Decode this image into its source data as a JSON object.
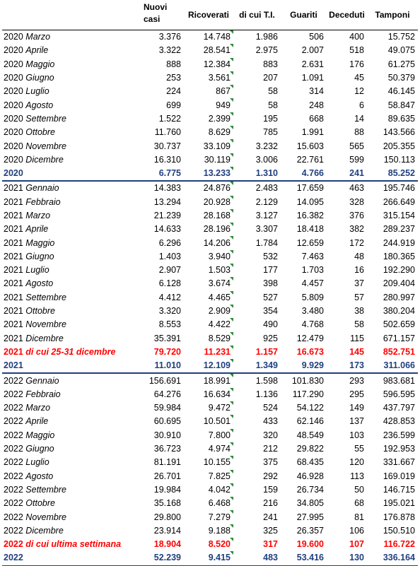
{
  "headers": [
    "",
    "Nuovi casi",
    "Ricoverati",
    "di cui T.I.",
    "Guariti",
    "Deceduti",
    "Tamponi"
  ],
  "sections": [
    {
      "year": "2020",
      "rows": [
        {
          "month": "Marzo",
          "values": [
            "3.376",
            "14.748",
            "1.986",
            "506",
            "400",
            "15.752"
          ]
        },
        {
          "month": "Aprile",
          "values": [
            "3.322",
            "28.541",
            "2.975",
            "2.007",
            "518",
            "49.075"
          ]
        },
        {
          "month": "Maggio",
          "values": [
            "888",
            "12.384",
            "883",
            "2.631",
            "176",
            "61.275"
          ]
        },
        {
          "month": "Giugno",
          "values": [
            "253",
            "3.561",
            "207",
            "1.091",
            "45",
            "50.379"
          ]
        },
        {
          "month": "Luglio",
          "values": [
            "224",
            "867",
            "58",
            "314",
            "12",
            "46.145"
          ]
        },
        {
          "month": "Agosto",
          "values": [
            "699",
            "949",
            "58",
            "248",
            "6",
            "58.847"
          ]
        },
        {
          "month": "Settembre",
          "values": [
            "1.522",
            "2.399",
            "195",
            "668",
            "14",
            "89.635"
          ]
        },
        {
          "month": "Ottobre",
          "values": [
            "11.760",
            "8.629",
            "785",
            "1.991",
            "88",
            "143.566"
          ]
        },
        {
          "month": "Novembre",
          "values": [
            "30.737",
            "33.109",
            "3.232",
            "15.603",
            "565",
            "205.355"
          ]
        },
        {
          "month": "Dicembre",
          "values": [
            "16.310",
            "30.119",
            "3.006",
            "22.761",
            "599",
            "150.113"
          ]
        }
      ],
      "week": null,
      "total": {
        "label": "2020",
        "values": [
          "6.775",
          "13.233",
          "1.310",
          "4.766",
          "241",
          "85.252"
        ]
      }
    },
    {
      "year": "2021",
      "rows": [
        {
          "month": "Gennaio",
          "values": [
            "14.383",
            "24.876",
            "2.483",
            "17.659",
            "463",
            "195.746"
          ]
        },
        {
          "month": "Febbraio",
          "values": [
            "13.294",
            "20.928",
            "2.129",
            "14.095",
            "328",
            "266.649"
          ]
        },
        {
          "month": "Marzo",
          "values": [
            "21.239",
            "28.168",
            "3.127",
            "16.382",
            "376",
            "315.154"
          ]
        },
        {
          "month": "Aprile",
          "values": [
            "14.633",
            "28.196",
            "3.307",
            "18.418",
            "382",
            "289.237"
          ]
        },
        {
          "month": "Maggio",
          "values": [
            "6.296",
            "14.206",
            "1.784",
            "12.659",
            "172",
            "244.919"
          ]
        },
        {
          "month": "Giugno",
          "values": [
            "1.403",
            "3.940",
            "532",
            "7.463",
            "48",
            "180.365"
          ]
        },
        {
          "month": "Luglio",
          "values": [
            "2.907",
            "1.503",
            "177",
            "1.703",
            "16",
            "192.290"
          ]
        },
        {
          "month": "Agosto",
          "values": [
            "6.128",
            "3.674",
            "398",
            "4.457",
            "37",
            "209.404"
          ]
        },
        {
          "month": "Settembre",
          "values": [
            "4.412",
            "4.465",
            "527",
            "5.809",
            "57",
            "280.997"
          ]
        },
        {
          "month": "Ottobre",
          "values": [
            "3.320",
            "2.909",
            "354",
            "3.480",
            "38",
            "380.204"
          ]
        },
        {
          "month": "Novembre",
          "values": [
            "8.553",
            "4.422",
            "490",
            "4.768",
            "58",
            "502.659"
          ]
        },
        {
          "month": "Dicembre",
          "values": [
            "35.391",
            "8.529",
            "925",
            "12.479",
            "115",
            "671.157"
          ]
        }
      ],
      "week": {
        "year": "2021",
        "label": "di cui 25-31 dicembre",
        "values": [
          "79.720",
          "11.231",
          "1.157",
          "16.673",
          "145",
          "852.751"
        ]
      },
      "total": {
        "label": "2021",
        "values": [
          "11.010",
          "12.109",
          "1.349",
          "9.929",
          "173",
          "311.066"
        ]
      }
    },
    {
      "year": "2022",
      "rows": [
        {
          "month": "Gennaio",
          "values": [
            "156.691",
            "18.991",
            "1.598",
            "101.830",
            "293",
            "983.681"
          ]
        },
        {
          "month": "Febbraio",
          "values": [
            "64.276",
            "16.634",
            "1.136",
            "117.290",
            "295",
            "596.595"
          ]
        },
        {
          "month": "Marzo",
          "values": [
            "59.984",
            "9.472",
            "524",
            "54.122",
            "149",
            "437.797"
          ]
        },
        {
          "month": "Aprile",
          "values": [
            "60.695",
            "10.501",
            "433",
            "62.146",
            "137",
            "428.853"
          ]
        },
        {
          "month": "Maggio",
          "values": [
            "30.910",
            "7.800",
            "320",
            "48.549",
            "103",
            "236.599"
          ]
        },
        {
          "month": "Giugno",
          "values": [
            "36.723",
            "4.974",
            "212",
            "29.822",
            "55",
            "192.953"
          ]
        },
        {
          "month": "Luglio",
          "values": [
            "81.191",
            "10.155",
            "375",
            "68.435",
            "120",
            "331.667"
          ]
        },
        {
          "month": "Agosto",
          "values": [
            "26.701",
            "7.825",
            "292",
            "46.928",
            "113",
            "169.019"
          ]
        },
        {
          "month": "Settembre",
          "values": [
            "19.984",
            "4.042",
            "159",
            "26.734",
            "50",
            "146.715"
          ]
        },
        {
          "month": "Ottobre",
          "values": [
            "35.168",
            "6.468",
            "216",
            "34.805",
            "68",
            "195.021"
          ]
        },
        {
          "month": "Novembre",
          "values": [
            "29.800",
            "7.279",
            "241",
            "27.995",
            "81",
            "176.878"
          ]
        },
        {
          "month": "Dicembre",
          "values": [
            "23.914",
            "9.188",
            "325",
            "26.357",
            "106",
            "150.510"
          ]
        }
      ],
      "week": {
        "year": "2022",
        "label": "di cui ultima settimana",
        "values": [
          "18.904",
          "8.520",
          "317",
          "19.600",
          "107",
          "116.722"
        ]
      },
      "total": {
        "label": "2022",
        "values": [
          "52.239",
          "9.415",
          "483",
          "53.416",
          "130",
          "336.164"
        ]
      }
    }
  ]
}
